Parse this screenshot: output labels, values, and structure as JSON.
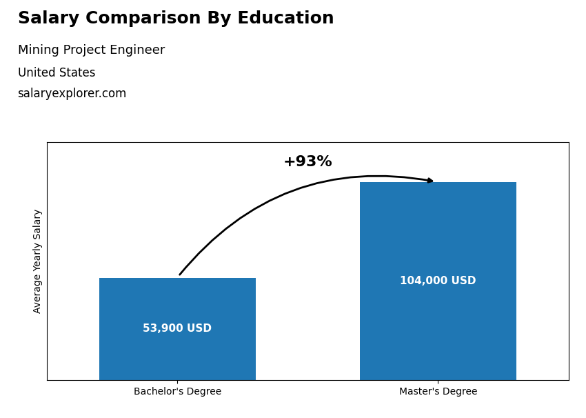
{
  "chart_data": {
    "type": "bar",
    "title": "Salary Comparison By Education",
    "subtitle": "Mining Project Engineer",
    "annotations": [
      {
        "text": "United States"
      },
      {
        "text": "salaryexplorer.com"
      },
      {
        "text": "+93%",
        "from": "Bachelor's Degree",
        "to": "Master's Degree"
      }
    ],
    "y_label": "Average Yearly Salary",
    "categories": [
      "Bachelor's Degree",
      "Master's Degree"
    ],
    "values": [
      53900,
      104000
    ],
    "value_labels": [
      "53,900 USD",
      "104,000 USD"
    ],
    "data_labels": true,
    "ylim": [
      0,
      125000
    ],
    "tick_labels": "x",
    "grid": false
  }
}
